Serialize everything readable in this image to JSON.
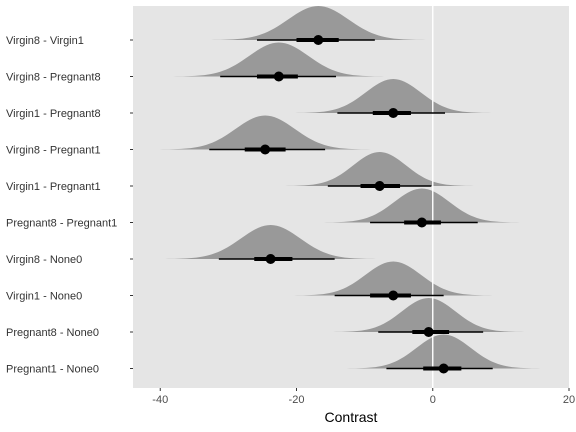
{
  "chart_data": {
    "type": "halfeye",
    "xlabel": "Contrast",
    "xlim": [
      -44,
      20
    ],
    "xticks": [
      -40,
      -20,
      0,
      20
    ],
    "grid": false,
    "reference_line_x": 0,
    "colors": {
      "panel": "#e5e5e5",
      "density": "#999999",
      "interval": "#000000",
      "reference_line": "#ffffff"
    },
    "rows": [
      {
        "label": "Virgin8 - Virgin1",
        "median": -16.8,
        "ci66": [
          -20.0,
          -13.8
        ],
        "ci95": [
          -25.8,
          -8.5
        ]
      },
      {
        "label": "Virgin8 - Pregnant8",
        "median": -22.6,
        "ci66": [
          -25.8,
          -19.8
        ],
        "ci95": [
          -31.2,
          -14.2
        ]
      },
      {
        "label": "Virgin1 - Pregnant8",
        "median": -5.8,
        "ci66": [
          -8.8,
          -3.2
        ],
        "ci95": [
          -14.0,
          1.8
        ]
      },
      {
        "label": "Virgin8 - Pregnant1",
        "median": -24.6,
        "ci66": [
          -27.6,
          -21.6
        ],
        "ci95": [
          -32.8,
          -15.8
        ]
      },
      {
        "label": "Virgin1 - Pregnant1",
        "median": -7.8,
        "ci66": [
          -10.6,
          -4.8
        ],
        "ci95": [
          -15.4,
          -0.2
        ]
      },
      {
        "label": "Pregnant8 - Pregnant1",
        "median": -1.6,
        "ci66": [
          -4.2,
          1.2
        ],
        "ci95": [
          -9.2,
          6.6
        ]
      },
      {
        "label": "Virgin8 - None0",
        "median": -23.8,
        "ci66": [
          -26.2,
          -20.6
        ],
        "ci95": [
          -31.4,
          -14.4
        ]
      },
      {
        "label": "Virgin1 - None0",
        "median": -5.8,
        "ci66": [
          -9.2,
          -3.2
        ],
        "ci95": [
          -14.4,
          1.6
        ]
      },
      {
        "label": "Pregnant8 - None0",
        "median": -0.6,
        "ci66": [
          -3.0,
          2.4
        ],
        "ci95": [
          -8.0,
          7.4
        ]
      },
      {
        "label": "Pregnant1 - None0",
        "median": 1.6,
        "ci66": [
          -1.4,
          4.2
        ],
        "ci95": [
          -6.8,
          8.8
        ]
      }
    ]
  }
}
